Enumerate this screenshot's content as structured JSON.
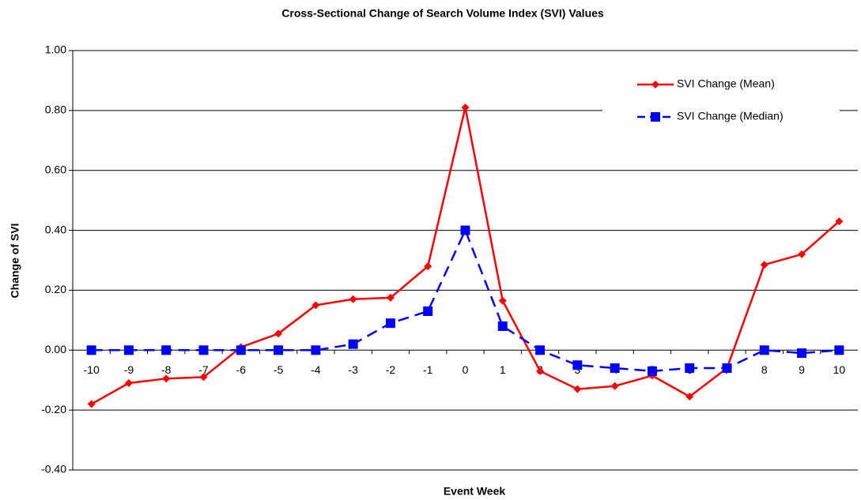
{
  "chart_data": {
    "type": "line",
    "title": "Cross-Sectional Change of Search Volume Index (SVI) Values",
    "x_label": "Event Week",
    "y_label": "Change of SVI",
    "categories": [
      "-10",
      "-9",
      "-8",
      "-7",
      "-6",
      "-5",
      "-4",
      "-3",
      "-2",
      "-1",
      "0",
      "1",
      "2",
      "3",
      "4",
      "5",
      "6",
      "7",
      "8",
      "9",
      "10"
    ],
    "series": [
      {
        "name": "SVI Change (Mean)",
        "color": "#ff0000",
        "dash": false,
        "marker": "diamond",
        "values": [
          -0.18,
          -0.11,
          -0.095,
          -0.09,
          0.01,
          0.055,
          0.15,
          0.17,
          0.175,
          0.28,
          0.81,
          0.165,
          -0.07,
          -0.13,
          -0.12,
          -0.085,
          -0.155,
          -0.06,
          0.285,
          0.32,
          0.43
        ]
      },
      {
        "name": "SVI Change (Median)",
        "color": "#0000ff",
        "dash": true,
        "marker": "square",
        "values": [
          0,
          0,
          0,
          0,
          0,
          0,
          0,
          0.02,
          0.09,
          0.13,
          0.4,
          0.08,
          0,
          -0.05,
          -0.06,
          -0.07,
          -0.06,
          -0.06,
          0,
          -0.01,
          0
        ]
      }
    ],
    "ylim": [
      -0.4,
      1.0
    ],
    "yticks": [
      {
        "value": -0.4,
        "label": "-0.40"
      },
      {
        "value": -0.2,
        "label": "-0.20"
      },
      {
        "value": 0,
        "label": "0.00"
      },
      {
        "value": 0.2,
        "label": "0.20"
      },
      {
        "value": 0.4,
        "label": "0.40"
      },
      {
        "value": 0.6,
        "label": "0.60"
      },
      {
        "value": 0.8,
        "label": "0.80"
      },
      {
        "value": 1.0,
        "label": "1.00"
      }
    ],
    "grid": true,
    "legend": "top-right"
  }
}
